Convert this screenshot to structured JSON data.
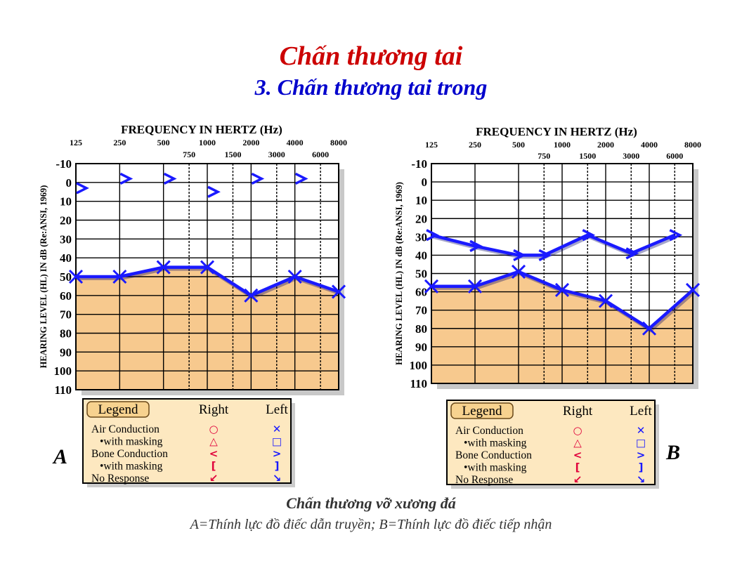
{
  "title": "Chấn thương tai",
  "subtitle": "3. Chấn thương tai trong",
  "caption_title": "Chấn thương vỡ xương đá",
  "caption_text": "A=Thính lực đồ điếc dẫn truyền;  B=Thính lực đồ điếc tiếp nhận",
  "colors": {
    "title": "#cc0000",
    "subtitle": "#0000cc",
    "series": "#1a1aff",
    "fill": "#f7c98e",
    "legend_bg": "#fde8c0"
  },
  "legend": {
    "title": "Legend",
    "col_right": "Right",
    "col_left": "Left",
    "rows": [
      "Air Conduction",
      "•with masking",
      "Bone Conduction",
      "•with masking",
      "No Response"
    ],
    "right_symbols": [
      "○",
      "△",
      "<",
      "[",
      "↙"
    ],
    "left_symbols": [
      "✕",
      "□",
      ">",
      "]",
      "↘"
    ]
  },
  "chart_data": [
    {
      "type": "line",
      "panel": "A",
      "xlabel": "FREQUENCY IN HERTZ (Hz)",
      "ylabel": "HEARING LEVEL (HL) IN dB (Re:ANSI, 1969)",
      "x_ticks_main": [
        "125",
        "250",
        "500",
        "1000",
        "2000",
        "4000",
        "8000"
      ],
      "x_ticks_mid": [
        "750",
        "1500",
        "3000",
        "6000"
      ],
      "y_ticks": [
        "-10",
        "0",
        "10",
        "20",
        "30",
        "40",
        "50",
        "60",
        "70",
        "80",
        "90",
        "100",
        "110"
      ],
      "ylim": [
        -10,
        110
      ],
      "series": [
        {
          "marker": "x",
          "x": [
            "125",
            "250",
            "500",
            "1000",
            "2000",
            "4000",
            "8000"
          ],
          "values": [
            50,
            50,
            45,
            45,
            60,
            50,
            58
          ]
        },
        {
          "marker": ">",
          "x": [
            "125",
            "250",
            "500",
            "1000",
            "2000",
            "4000"
          ],
          "values": [
            3,
            -2,
            -2,
            5,
            -2,
            -2
          ]
        }
      ]
    },
    {
      "type": "line",
      "panel": "B",
      "xlabel": "FREQUENCY IN HERTZ (Hz)",
      "ylabel": "HEARING LEVEL (HL) IN dB (Re:ANSI, 1969)",
      "x_ticks_main": [
        "125",
        "250",
        "500",
        "1000",
        "2000",
        "4000",
        "8000"
      ],
      "x_ticks_mid": [
        "750",
        "1500",
        "3000",
        "6000"
      ],
      "y_ticks": [
        "-10",
        "0",
        "10",
        "20",
        "30",
        "40",
        "50",
        "60",
        "70",
        "80",
        "90",
        "100",
        "110"
      ],
      "ylim": [
        -10,
        110
      ],
      "series": [
        {
          "marker": "x",
          "x": [
            "125",
            "250",
            "500",
            "1000",
            "2000",
            "4000",
            "8000"
          ],
          "values": [
            57,
            57,
            49,
            59,
            65,
            80,
            59
          ]
        },
        {
          "marker": ">",
          "x": [
            "125",
            "250",
            "500",
            "750",
            "1500",
            "3000",
            "6000"
          ],
          "values": [
            29,
            35,
            40,
            40,
            29,
            39,
            29
          ]
        }
      ]
    }
  ]
}
